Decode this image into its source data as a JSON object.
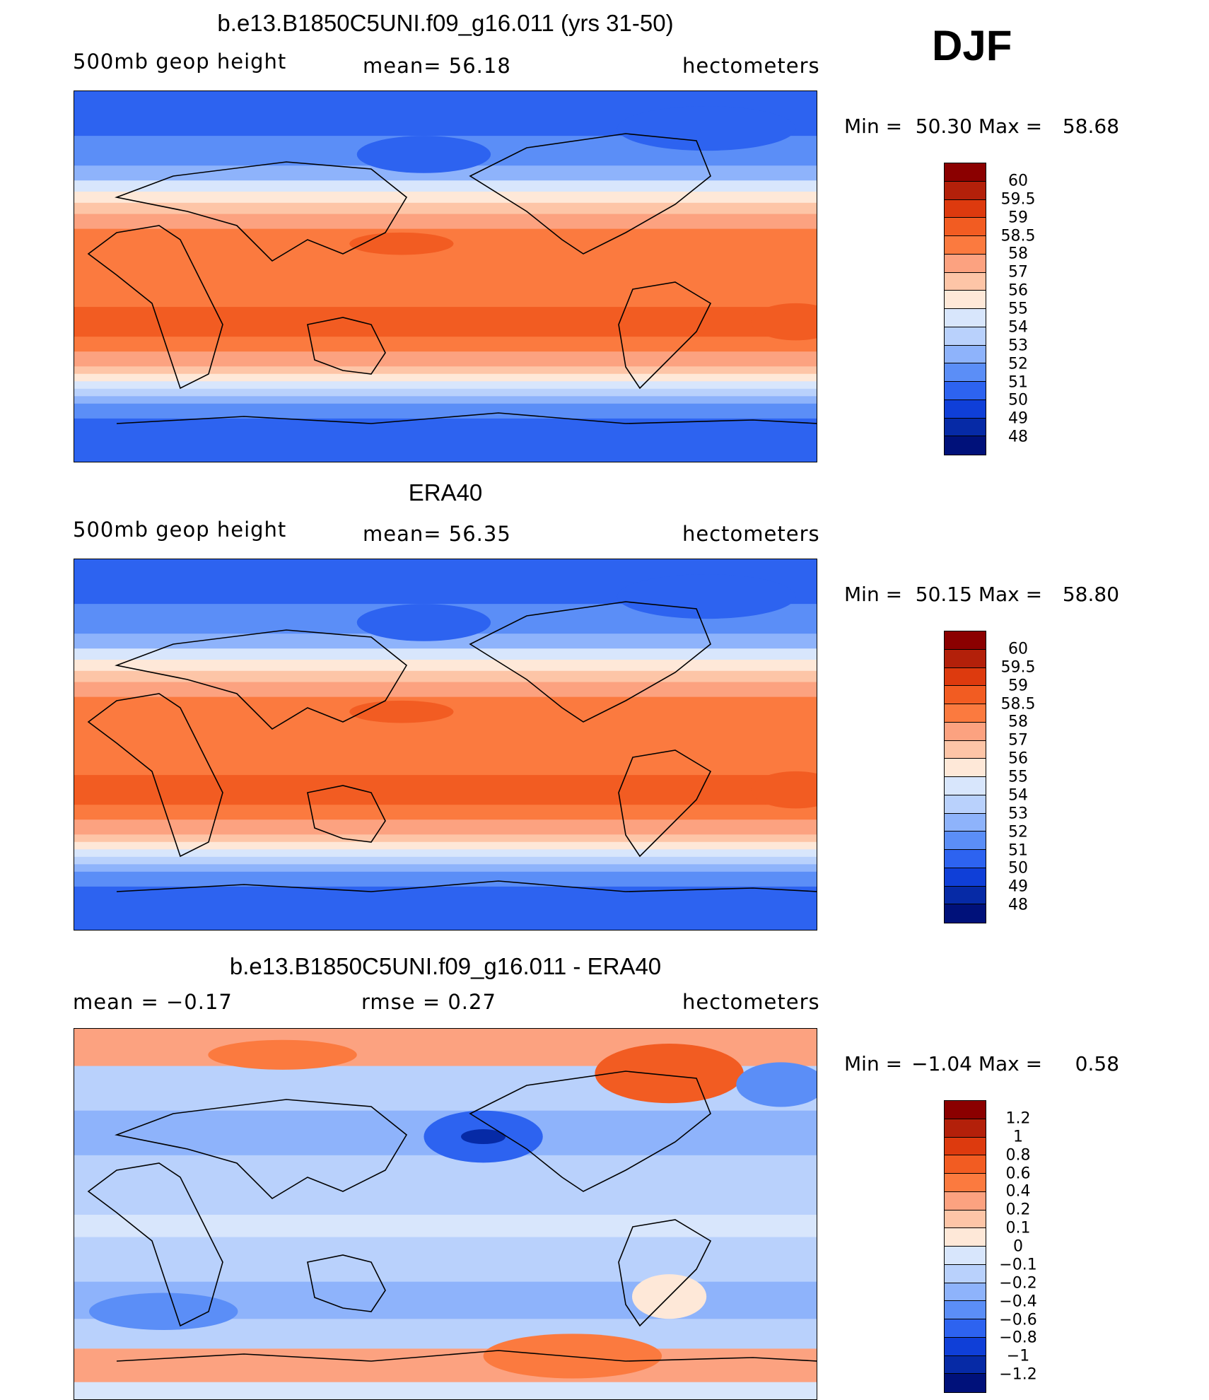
{
  "season": "DJF",
  "panels": [
    {
      "id": "model",
      "title": "b.e13.B1850C5UNI.f09_g16.011 (yrs 31-50)",
      "left_label": "500mb geop height",
      "mid_label": "mean=   56.18",
      "units": "hectometers",
      "min_label": "Min =",
      "min_value": "50.30",
      "max_label": "Max =",
      "max_value": "58.68",
      "colorbar": {
        "labels": [
          "60",
          "59.5",
          "59",
          "58.5",
          "58",
          "57",
          "56",
          "55",
          "54",
          "53",
          "52",
          "51",
          "50",
          "49",
          "48"
        ],
        "colors": [
          "#8b0000",
          "#b3200a",
          "#dd3a0e",
          "#f25c22",
          "#fb7a3f",
          "#fca280",
          "#fdc5a7",
          "#fee8d8",
          "#d8e6fc",
          "#b9d1fc",
          "#8eb3fb",
          "#5b8ef7",
          "#2d63f0",
          "#0f3fd8",
          "#062aa6",
          "#00117a"
        ]
      },
      "map_fill": "sym"
    },
    {
      "id": "obs",
      "title": "ERA40",
      "left_label": "500mb geop height",
      "mid_label": "mean=   56.35",
      "units": "hectometers",
      "min_label": "Min =",
      "min_value": "50.15",
      "max_label": "Max =",
      "max_value": "58.80",
      "colorbar": {
        "labels": [
          "60",
          "59.5",
          "59",
          "58.5",
          "58",
          "57",
          "56",
          "55",
          "54",
          "53",
          "52",
          "51",
          "50",
          "49",
          "48"
        ],
        "colors": [
          "#8b0000",
          "#b3200a",
          "#dd3a0e",
          "#f25c22",
          "#fb7a3f",
          "#fca280",
          "#fdc5a7",
          "#fee8d8",
          "#d8e6fc",
          "#b9d1fc",
          "#8eb3fb",
          "#5b8ef7",
          "#2d63f0",
          "#0f3fd8",
          "#062aa6",
          "#00117a"
        ]
      },
      "map_fill": "sym"
    },
    {
      "id": "diff",
      "title": "b.e13.B1850C5UNI.f09_g16.011 - ERA40",
      "left_label": "mean =   −0.17",
      "mid_label": "rmse =    0.27",
      "units": "hectometers",
      "min_label": "Min =",
      "min_value": "−1.04",
      "max_label": "Max =",
      "max_value": "0.58",
      "colorbar": {
        "labels": [
          "1.2",
          "1",
          "0.8",
          "0.6",
          "0.4",
          "0.2",
          "0.1",
          "0",
          "−0.1",
          "−0.2",
          "−0.4",
          "−0.6",
          "−0.8",
          "−1",
          "−1.2"
        ],
        "colors": [
          "#8b0000",
          "#b3200a",
          "#dd3a0e",
          "#f25c22",
          "#fb7a3f",
          "#fca280",
          "#fdc5a7",
          "#fee8d8",
          "#d8e6fc",
          "#b9d1fc",
          "#8eb3fb",
          "#5b8ef7",
          "#2d63f0",
          "#0f3fd8",
          "#062aa6",
          "#00117a"
        ]
      },
      "map_fill": "diff"
    }
  ],
  "chart_data": [
    {
      "type": "heatmap",
      "title": "b.e13.B1850C5UNI.f09_g16.011 (yrs 31-50)",
      "variable": "500mb geop height",
      "units": "hectometers",
      "mean": 56.18,
      "min": 50.3,
      "max": 58.68,
      "levels": [
        48,
        49,
        50,
        51,
        52,
        53,
        54,
        55,
        56,
        57,
        58,
        58.5,
        59,
        59.5,
        60
      ]
    },
    {
      "type": "heatmap",
      "title": "ERA40",
      "variable": "500mb geop height",
      "units": "hectometers",
      "mean": 56.35,
      "min": 50.15,
      "max": 58.8,
      "levels": [
        48,
        49,
        50,
        51,
        52,
        53,
        54,
        55,
        56,
        57,
        58,
        58.5,
        59,
        59.5,
        60
      ]
    },
    {
      "type": "heatmap",
      "title": "b.e13.B1850C5UNI.f09_g16.011 - ERA40",
      "units": "hectometers",
      "mean": -0.17,
      "rmse": 0.27,
      "min": -1.04,
      "max": 0.58,
      "levels": [
        -1.2,
        -1,
        -0.8,
        -0.6,
        -0.4,
        -0.2,
        -0.1,
        0,
        0.1,
        0.2,
        0.4,
        0.6,
        0.8,
        1,
        1.2
      ]
    }
  ]
}
